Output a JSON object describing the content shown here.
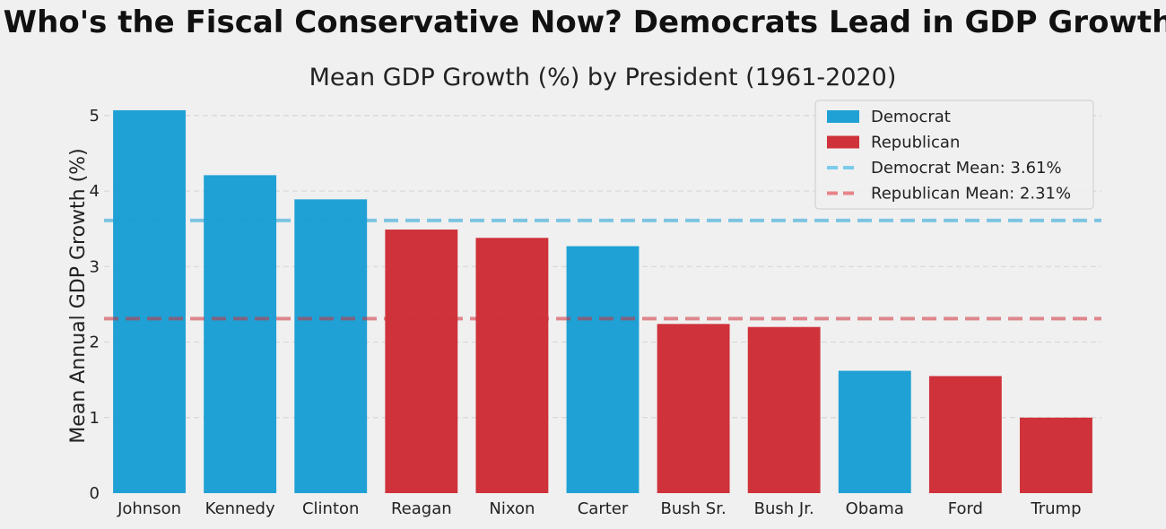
{
  "suptitle": "Who's the Fiscal Conservative Now? Democrats Lead in GDP Growth",
  "chart_data": {
    "type": "bar",
    "title": "Mean GDP Growth (%) by President (1961-2020)",
    "xlabel": "",
    "ylabel": "Mean Annual GDP Growth (%)",
    "ylim": [
      0,
      5.2
    ],
    "yticks": [
      0,
      1,
      2,
      3,
      4,
      5
    ],
    "grid": true,
    "legend_position": "top-right",
    "categories": [
      "Johnson",
      "Kennedy",
      "Clinton",
      "Reagan",
      "Nixon",
      "Carter",
      "Bush Sr.",
      "Bush Jr.",
      "Obama",
      "Ford",
      "Trump"
    ],
    "values": [
      5.07,
      4.21,
      3.89,
      3.49,
      3.38,
      3.27,
      2.24,
      2.2,
      1.62,
      1.55,
      1.0
    ],
    "party": [
      "Democrat",
      "Democrat",
      "Democrat",
      "Republican",
      "Republican",
      "Democrat",
      "Republican",
      "Republican",
      "Democrat",
      "Republican",
      "Republican"
    ],
    "colors": {
      "Democrat": "#1fa1d5",
      "Republican": "#cf323b",
      "Democrat Mean": "#7ccbeb",
      "Republican Mean": "#e8848a"
    },
    "reference_lines": [
      {
        "label": "Democrat Mean: 3.61%",
        "value": 3.61,
        "party": "Democrat"
      },
      {
        "label": "Republican Mean: 2.31%",
        "value": 2.31,
        "party": "Republican"
      }
    ],
    "legend": [
      {
        "label": "Democrat",
        "kind": "patch",
        "key": "Democrat"
      },
      {
        "label": "Republican",
        "kind": "patch",
        "key": "Republican"
      },
      {
        "label": "Democrat Mean: 3.61%",
        "kind": "dashed-line",
        "key": "Democrat Mean"
      },
      {
        "label": "Republican Mean: 2.31%",
        "kind": "dashed-line",
        "key": "Republican Mean"
      }
    ]
  }
}
